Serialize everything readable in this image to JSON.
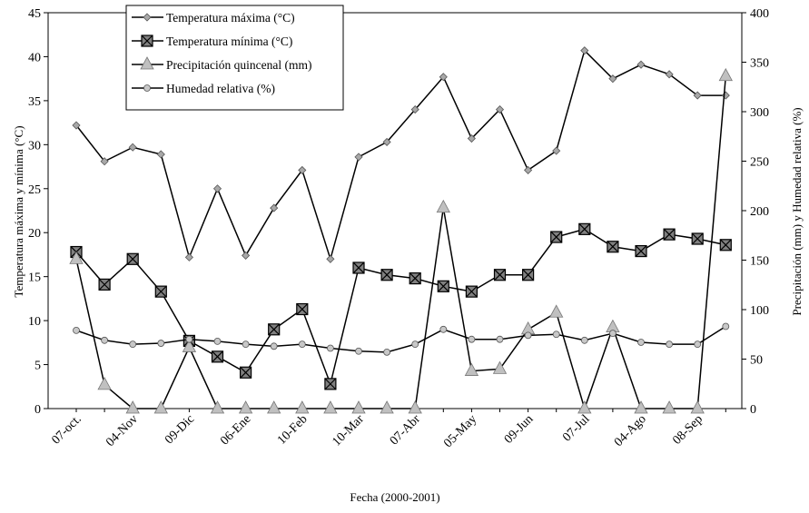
{
  "chart_data": {
    "type": "line",
    "xlabel": "Fecha (2000-2001)",
    "ylabel_left": "Temperatura máxima y mínima (°C)",
    "ylabel_right": "Precipitación (mm) y Humedad relativa (%)",
    "y_left_lim": [
      0,
      45
    ],
    "y_left_ticks": [
      0,
      5,
      10,
      15,
      20,
      25,
      30,
      35,
      40,
      45
    ],
    "y_right_lim": [
      0,
      400
    ],
    "y_right_ticks": [
      0,
      50,
      100,
      150,
      200,
      250,
      300,
      350,
      400
    ],
    "x_tick_labels": [
      "07-oct.",
      "04-Nov",
      "09-Dic",
      "06-Ene",
      "10-Feb",
      "10-Mar",
      "07-Abr",
      "05-May",
      "09-Jun",
      "07-Jul",
      "04-Ago",
      "08-Sep"
    ],
    "grid": false,
    "legend_position": "top-left",
    "series": [
      {
        "name": "Temperatura máxima (°C)",
        "axis": "left",
        "marker": "diamond",
        "color": "#a8a8a8",
        "values": [
          32.2,
          28.1,
          29.7,
          28.9,
          17.2,
          25.0,
          17.4,
          22.8,
          27.1,
          17.0,
          28.6,
          30.3,
          34.0,
          37.7,
          30.7,
          34.0,
          27.1,
          29.3,
          40.7,
          37.5,
          39.1,
          38.0,
          35.6,
          35.6
        ]
      },
      {
        "name": "Temperatura mínima (°C)",
        "axis": "left",
        "marker": "square-x",
        "color": "#808080",
        "values": [
          17.8,
          14.1,
          17.0,
          13.3,
          7.7,
          5.9,
          4.1,
          9.0,
          11.3,
          2.8,
          16.0,
          15.2,
          14.8,
          13.9,
          13.3,
          15.2,
          15.2,
          19.5,
          20.4,
          18.4,
          17.9,
          19.8,
          19.3,
          18.6
        ]
      },
      {
        "name": "Precipitación quincenal (mm)",
        "axis": "right",
        "marker": "triangle",
        "color": "#c0c0c0",
        "values": [
          151,
          24,
          0,
          0,
          62,
          0,
          0,
          0,
          0,
          0,
          0,
          0,
          0,
          203,
          38,
          40,
          80,
          97,
          0,
          82,
          0,
          0,
          0,
          336
        ]
      },
      {
        "name": "Humedad relativa (%)",
        "axis": "right",
        "marker": "circle",
        "color": "#c8c8c8",
        "values": [
          79,
          69,
          65,
          66,
          70,
          68,
          65,
          63,
          65,
          61,
          58,
          57,
          65,
          80,
          70,
          70,
          74,
          75,
          69,
          76,
          67,
          65,
          65,
          83
        ]
      }
    ]
  }
}
